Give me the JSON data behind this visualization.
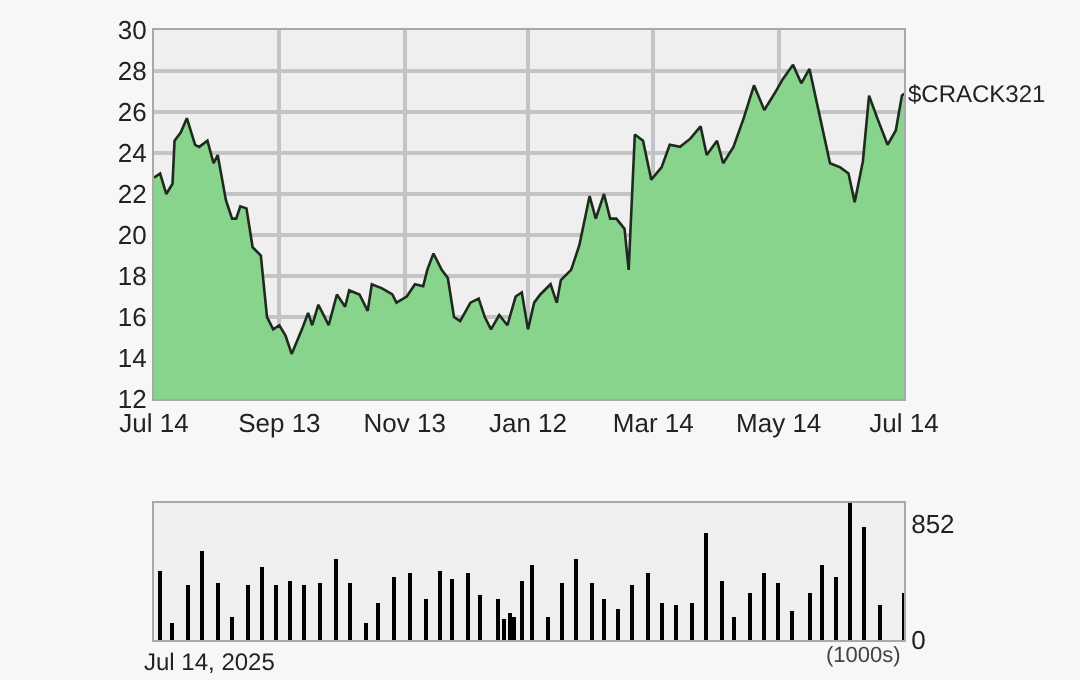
{
  "chart_data": [
    {
      "type": "area",
      "x": [
        "2024-07-14",
        "2024-07-17",
        "2024-07-20",
        "2024-07-23",
        "2024-07-24",
        "2024-07-27",
        "2024-07-30",
        "2024-08-03",
        "2024-08-05",
        "2024-08-09",
        "2024-08-12",
        "2024-08-14",
        "2024-08-18",
        "2024-08-21",
        "2024-08-23",
        "2024-08-25",
        "2024-08-28",
        "2024-08-31",
        "2024-09-04",
        "2024-09-07",
        "2024-09-10",
        "2024-09-13",
        "2024-09-16",
        "2024-09-19",
        "2024-09-24",
        "2024-09-27",
        "2024-09-29",
        "2024-10-02",
        "2024-10-04",
        "2024-10-07",
        "2024-10-11",
        "2024-10-15",
        "2024-10-17",
        "2024-10-22",
        "2024-10-26",
        "2024-10-28",
        "2024-11-02",
        "2024-11-07",
        "2024-11-09",
        "2024-11-14",
        "2024-11-18",
        "2024-11-22",
        "2024-11-24",
        "2024-11-27",
        "2024-12-01",
        "2024-12-04",
        "2024-12-07",
        "2024-12-10",
        "2024-12-15",
        "2024-12-19",
        "2024-12-22",
        "2024-12-25",
        "2024-12-29",
        "2025-01-02",
        "2025-01-06",
        "2025-01-09",
        "2025-01-12",
        "2025-01-15",
        "2025-01-18",
        "2025-01-23",
        "2025-01-26",
        "2025-01-28",
        "2025-02-02",
        "2025-02-06",
        "2025-02-11",
        "2025-02-14",
        "2025-02-18",
        "2025-02-21",
        "2025-02-24",
        "2025-02-28",
        "2025-03-02",
        "2025-03-05",
        "2025-03-09",
        "2025-03-13",
        "2025-03-18",
        "2025-03-22",
        "2025-03-27",
        "2025-04-01",
        "2025-04-06",
        "2025-04-09",
        "2025-04-14",
        "2025-04-17",
        "2025-04-22",
        "2025-04-27",
        "2025-05-02",
        "2025-05-07",
        "2025-05-12",
        "2025-05-16",
        "2025-05-21",
        "2025-05-25",
        "2025-05-29",
        "2025-06-03",
        "2025-06-08",
        "2025-06-13",
        "2025-06-17",
        "2025-06-20",
        "2025-06-24",
        "2025-06-27",
        "2025-07-01",
        "2025-07-06",
        "2025-07-10",
        "2025-07-13",
        "2025-07-14"
      ],
      "values": [
        22.8,
        23.0,
        22.0,
        22.5,
        24.6,
        25.0,
        25.7,
        24.4,
        24.3,
        24.6,
        23.5,
        23.9,
        21.7,
        20.8,
        20.8,
        21.4,
        21.3,
        19.4,
        19.0,
        16.0,
        15.4,
        15.6,
        15.1,
        14.2,
        15.4,
        16.2,
        15.6,
        16.6,
        16.2,
        15.6,
        17.1,
        16.5,
        17.3,
        17.1,
        16.3,
        17.6,
        17.4,
        17.1,
        16.7,
        17.0,
        17.6,
        17.5,
        18.3,
        19.1,
        18.3,
        17.9,
        16.0,
        15.8,
        16.7,
        16.9,
        16.0,
        15.4,
        16.1,
        15.6,
        17.0,
        17.2,
        15.4,
        16.7,
        17.1,
        17.6,
        16.7,
        17.8,
        18.3,
        19.5,
        21.9,
        20.8,
        22.0,
        20.8,
        20.8,
        20.3,
        18.3,
        24.9,
        24.6,
        22.7,
        23.3,
        24.4,
        24.3,
        24.7,
        25.3,
        23.9,
        24.6,
        23.5,
        24.3,
        25.7,
        27.3,
        26.1,
        26.9,
        27.6,
        28.3,
        27.4,
        28.1,
        25.8,
        23.5,
        23.3,
        23.0,
        21.6,
        23.6,
        26.8,
        25.7,
        24.4,
        25.1,
        26.8,
        26.9
      ],
      "color": "#88d48c",
      "xlim": [
        "2024-07-14",
        "2025-07-14"
      ],
      "xticks": [
        {
          "value": "2024-07-14",
          "label": "Jul 14"
        },
        {
          "value": "2024-09-13",
          "label": "Sep 13"
        },
        {
          "value": "2024-11-13",
          "label": "Nov 13"
        },
        {
          "value": "2025-01-12",
          "label": "Jan 12"
        },
        {
          "value": "2025-03-14",
          "label": "Mar 14"
        },
        {
          "value": "2025-05-14",
          "label": "May 14"
        },
        {
          "value": "2025-07-14",
          "label": "Jul 14"
        }
      ],
      "ylim": [
        12,
        30
      ],
      "yticks": [
        12,
        14,
        16,
        18,
        20,
        22,
        24,
        26,
        28,
        30
      ],
      "grid": true,
      "annotations": [
        {
          "text": "$CRACK321",
          "x": "2025-07-14",
          "y": 26.9
        }
      ]
    },
    {
      "type": "bar",
      "x": [
        "2024-07-17",
        "2024-07-23",
        "2024-07-31",
        "2024-08-06",
        "2024-08-14",
        "2024-08-21",
        "2024-08-29",
        "2024-09-05",
        "2024-09-11",
        "2024-09-18",
        "2024-09-25",
        "2024-10-03",
        "2024-10-11",
        "2024-10-17",
        "2024-10-25",
        "2024-10-31",
        "2024-11-08",
        "2024-11-16",
        "2024-11-23",
        "2024-11-30",
        "2024-12-06",
        "2024-12-14",
        "2024-12-20",
        "2024-12-28",
        "2024-12-31",
        "2025-01-03",
        "2025-01-05",
        "2025-01-09",
        "2025-01-14",
        "2025-01-22",
        "2025-01-29",
        "2025-02-04",
        "2025-02-12",
        "2025-02-18",
        "2025-02-25",
        "2025-03-04",
        "2025-03-11",
        "2025-03-18",
        "2025-03-25",
        "2025-04-02",
        "2025-04-09",
        "2025-04-16",
        "2025-04-22",
        "2025-04-30",
        "2025-05-07",
        "2025-05-14",
        "2025-05-21",
        "2025-05-29",
        "2025-06-04",
        "2025-06-11",
        "2025-06-18",
        "2025-06-25",
        "2025-07-02",
        "2025-07-14"
      ],
      "values": [
        510,
        120,
        410,
        650,
        420,
        170,
        400,
        540,
        400,
        440,
        400,
        420,
        600,
        420,
        120,
        280,
        460,
        490,
        310,
        510,
        450,
        490,
        330,
        300,
        150,
        200,
        170,
        440,
        560,
        170,
        420,
        600,
        420,
        310,
        230,
        400,
        490,
        280,
        260,
        280,
        790,
        440,
        170,
        350,
        490,
        420,
        210,
        350,
        560,
        460,
        1010,
        840,
        260,
        350
      ],
      "color": "#000000",
      "xlim": [
        "2024-07-14",
        "2025-07-14"
      ],
      "ylim": [
        0,
        1010
      ],
      "yticks": [
        0,
        852
      ],
      "tick_labels": "y",
      "annotations": [
        "(1000s)",
        "Jul 14, 2025"
      ]
    }
  ]
}
